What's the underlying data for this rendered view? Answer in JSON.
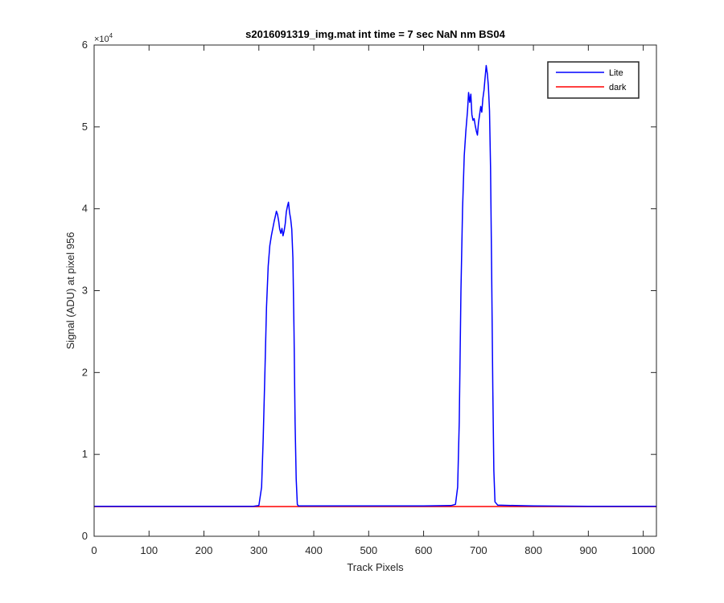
{
  "chart_data": {
    "type": "line",
    "title": "s2016091319_img.mat int time = 7 sec  NaN nm BS04",
    "xlabel": "Track Pixels",
    "ylabel": "Signal (ADU) at pixel 956",
    "xlim": [
      0,
      1024
    ],
    "ylim": [
      0,
      60000
    ],
    "x_ticks": [
      "0",
      "100",
      "200",
      "300",
      "400",
      "500",
      "600",
      "700",
      "800",
      "900",
      "1000"
    ],
    "y_ticks": [
      "0",
      "1",
      "2",
      "3",
      "4",
      "5",
      "6"
    ],
    "y_multiplier": "×10",
    "y_multiplier_exp": "4",
    "legend_position": "top-right",
    "grid": false,
    "series": [
      {
        "name": "Lite",
        "color": "#0000ff",
        "points": [
          [
            0,
            3650
          ],
          [
            100,
            3650
          ],
          [
            200,
            3650
          ],
          [
            290,
            3650
          ],
          [
            300,
            3750
          ],
          [
            305,
            6000
          ],
          [
            308,
            12000
          ],
          [
            311,
            20000
          ],
          [
            314,
            28000
          ],
          [
            317,
            33000
          ],
          [
            320,
            35500
          ],
          [
            323,
            36800
          ],
          [
            326,
            37800
          ],
          [
            328,
            38500
          ],
          [
            330,
            39100
          ],
          [
            332,
            39700
          ],
          [
            334,
            39300
          ],
          [
            336,
            38500
          ],
          [
            338,
            37500
          ],
          [
            340,
            37000
          ],
          [
            342,
            37600
          ],
          [
            344,
            36700
          ],
          [
            346,
            37300
          ],
          [
            348,
            38200
          ],
          [
            350,
            39600
          ],
          [
            352,
            40300
          ],
          [
            354,
            40800
          ],
          [
            356,
            39500
          ],
          [
            358,
            38700
          ],
          [
            360,
            37500
          ],
          [
            362,
            34000
          ],
          [
            364,
            25000
          ],
          [
            366,
            14000
          ],
          [
            368,
            7000
          ],
          [
            370,
            3900
          ],
          [
            372,
            3700
          ],
          [
            400,
            3700
          ],
          [
            500,
            3700
          ],
          [
            600,
            3700
          ],
          [
            650,
            3750
          ],
          [
            658,
            3900
          ],
          [
            662,
            6000
          ],
          [
            665,
            14000
          ],
          [
            668,
            30000
          ],
          [
            671,
            40000
          ],
          [
            674,
            46500
          ],
          [
            677,
            49500
          ],
          [
            680,
            52000
          ],
          [
            682,
            54200
          ],
          [
            684,
            53000
          ],
          [
            686,
            54000
          ],
          [
            688,
            51500
          ],
          [
            690,
            50800
          ],
          [
            692,
            51000
          ],
          [
            694,
            50200
          ],
          [
            696,
            49500
          ],
          [
            698,
            49000
          ],
          [
            700,
            50500
          ],
          [
            702,
            51500
          ],
          [
            704,
            52500
          ],
          [
            706,
            51800
          ],
          [
            708,
            53500
          ],
          [
            710,
            54500
          ],
          [
            712,
            56000
          ],
          [
            714,
            57500
          ],
          [
            716,
            56500
          ],
          [
            718,
            55000
          ],
          [
            720,
            52000
          ],
          [
            722,
            45000
          ],
          [
            724,
            32000
          ],
          [
            726,
            18000
          ],
          [
            728,
            8000
          ],
          [
            730,
            4200
          ],
          [
            735,
            3800
          ],
          [
            800,
            3700
          ],
          [
            900,
            3650
          ],
          [
            1024,
            3650
          ]
        ]
      },
      {
        "name": "dark",
        "color": "#ff0000",
        "points": [
          [
            0,
            3620
          ],
          [
            250,
            3620
          ],
          [
            500,
            3630
          ],
          [
            750,
            3630
          ],
          [
            1024,
            3620
          ]
        ]
      }
    ]
  }
}
